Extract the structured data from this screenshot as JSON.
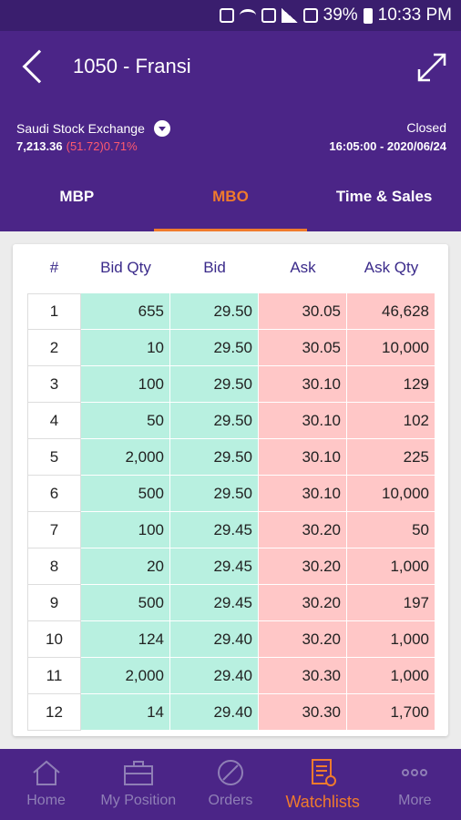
{
  "statusbar": {
    "battery": "39%",
    "time": "10:33 PM"
  },
  "header": {
    "title": "1050 - Fransi"
  },
  "market": {
    "exchange": "Saudi Stock Exchange",
    "index_value": "7,213.36",
    "index_change": "(51.72)0.71%",
    "status": "Closed",
    "timestamp": "16:05:00 - 2020/06/24"
  },
  "tabs": [
    {
      "label": "MBP",
      "active": false
    },
    {
      "label": "MBO",
      "active": true
    },
    {
      "label": "Time & Sales",
      "active": false
    }
  ],
  "table": {
    "headers": [
      "#",
      "Bid Qty",
      "Bid",
      "Ask",
      "Ask Qty"
    ],
    "rows": [
      [
        "1",
        "655",
        "29.50",
        "30.05",
        "46,628"
      ],
      [
        "2",
        "10",
        "29.50",
        "30.05",
        "10,000"
      ],
      [
        "3",
        "100",
        "29.50",
        "30.10",
        "129"
      ],
      [
        "4",
        "50",
        "29.50",
        "30.10",
        "102"
      ],
      [
        "5",
        "2,000",
        "29.50",
        "30.10",
        "225"
      ],
      [
        "6",
        "500",
        "29.50",
        "30.10",
        "10,000"
      ],
      [
        "7",
        "100",
        "29.45",
        "30.20",
        "50"
      ],
      [
        "8",
        "20",
        "29.45",
        "30.20",
        "1,000"
      ],
      [
        "9",
        "500",
        "29.45",
        "30.20",
        "197"
      ],
      [
        "10",
        "124",
        "29.40",
        "30.20",
        "1,000"
      ],
      [
        "11",
        "2,000",
        "29.40",
        "30.30",
        "1,000"
      ],
      [
        "12",
        "14",
        "29.40",
        "30.30",
        "1,700"
      ]
    ]
  },
  "colors": {
    "header_bg": "#4b2587",
    "accent": "#f07b2c",
    "bid_bg": "#b8f0e0",
    "ask_bg": "#ffc7c7",
    "negative": "#ff5a6e"
  },
  "bottomnav": [
    {
      "label": "Home",
      "icon": "home-icon",
      "active": false
    },
    {
      "label": "My Position",
      "icon": "briefcase-icon",
      "active": false
    },
    {
      "label": "Orders",
      "icon": "orders-icon",
      "active": false
    },
    {
      "label": "Watchlists",
      "icon": "watchlist-icon",
      "active": true
    },
    {
      "label": "More",
      "icon": "more-icon",
      "active": false
    }
  ]
}
